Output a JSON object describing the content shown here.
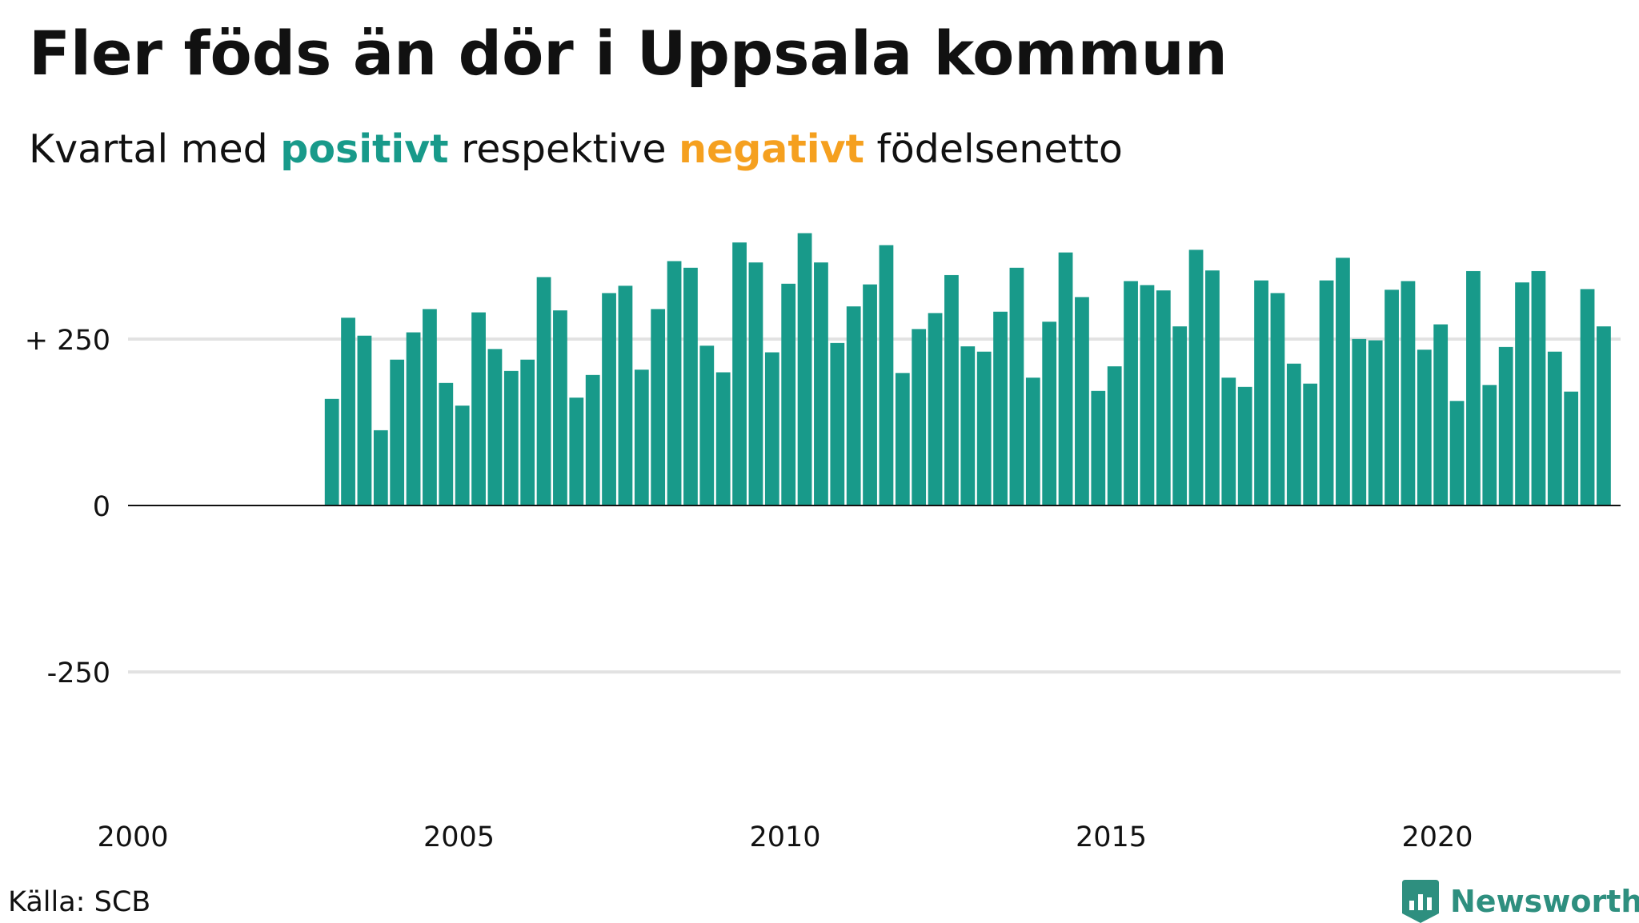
{
  "title": "Fler föds än dör i Uppsala kommun",
  "subtitle": {
    "prefix": "Kvartal med ",
    "positive": "positivt",
    "middle": " respektive ",
    "negative": "negativt",
    "suffix": " födelsenetto"
  },
  "colors": {
    "positive": "#189a8a",
    "negative": "#f5a01f",
    "grid": "#e2e2e2",
    "baseline": "#111111",
    "brand": "#2e8f7f"
  },
  "source": "Källa: SCB",
  "brand": {
    "name": "Newsworthy",
    "icon": "bar-chart-bookmark-icon"
  },
  "chart_data": {
    "type": "bar",
    "title": "Fler föds än dör i Uppsala kommun",
    "xlim": [
      2000,
      2023
    ],
    "ylim": [
      -460,
      420
    ],
    "y_ticks": [
      {
        "value": 250,
        "label": "+ 250"
      },
      {
        "value": 0,
        "label": "0"
      },
      {
        "value": -250,
        "label": "-250"
      }
    ],
    "x_ticks": [
      {
        "value": 2000,
        "label": "2000"
      },
      {
        "value": 2005,
        "label": "2005"
      },
      {
        "value": 2010,
        "label": "2010"
      },
      {
        "value": 2015,
        "label": "2015"
      },
      {
        "value": 2020,
        "label": "2020"
      }
    ],
    "grid": true,
    "first_quarter": "2003Q1",
    "values": [
      160,
      282,
      255,
      113,
      219,
      260,
      295,
      184,
      150,
      290,
      235,
      202,
      219,
      343,
      293,
      162,
      196,
      319,
      330,
      204,
      295,
      367,
      357,
      240,
      200,
      395,
      365,
      230,
      333,
      409,
      365,
      244,
      299,
      332,
      391,
      199,
      265,
      289,
      346,
      239,
      231,
      291,
      357,
      192,
      276,
      380,
      313,
      172,
      209,
      337,
      331,
      323,
      269,
      384,
      353,
      192,
      178,
      338,
      319,
      213,
      183,
      338,
      372,
      250,
      248,
      324,
      337,
      234,
      272,
      157,
      352,
      181,
      238,
      335,
      352,
      231,
      171,
      325,
      269
    ]
  }
}
